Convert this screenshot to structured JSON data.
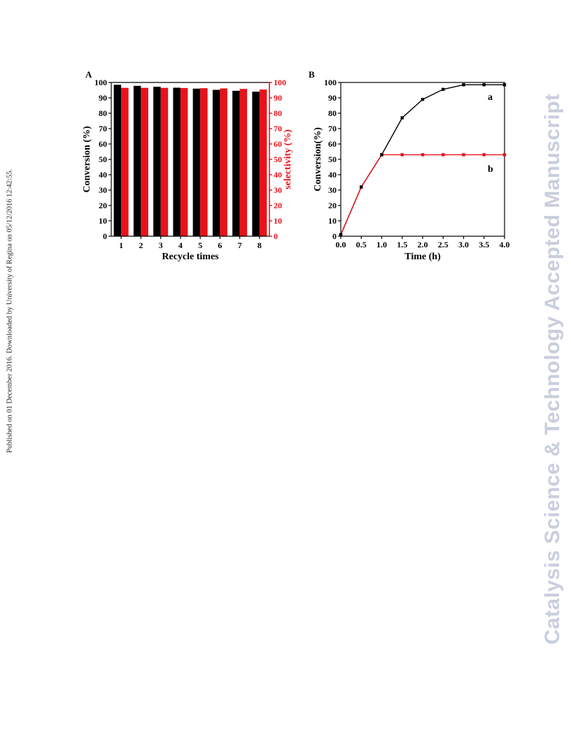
{
  "page": {
    "side_note": "Published on 01 December 2016. Downloaded by University of Regina on 05/12/2016 12:42:55.",
    "watermark": "Catalysis Science & Technology Accepted Manuscript"
  },
  "colors": {
    "black": "#000000",
    "red": "#e8121a"
  },
  "chart_data": [
    {
      "type": "bar",
      "panel_label": "A",
      "categories": [
        "1",
        "2",
        "3",
        "4",
        "5",
        "6",
        "7",
        "8"
      ],
      "series": [
        {
          "values": [
            98.5,
            97.8,
            97.2,
            96.6,
            96.0,
            95.2,
            94.6,
            94.0
          ],
          "axis": "left",
          "color": "#000000"
        },
        {
          "values": [
            96.5,
            96.5,
            96.5,
            96.4,
            96.3,
            96.1,
            95.8,
            95.4
          ],
          "axis": "right",
          "color": "#e8121a"
        }
      ],
      "xlabel": "Recycle times",
      "ylabel": "Conversion (%)",
      "y2label": "selectivity (%)",
      "ylim": [
        0,
        100
      ],
      "y2lim": [
        0,
        100
      ],
      "yticks": [
        "0",
        "10",
        "20",
        "30",
        "40",
        "50",
        "60",
        "70",
        "80",
        "90",
        "100"
      ],
      "grid": false
    },
    {
      "type": "line",
      "panel_label": "B",
      "x": [
        0.0,
        0.5,
        1.0,
        1.5,
        2.0,
        2.5,
        3.0,
        3.5,
        4.0
      ],
      "xticks": [
        "0.0",
        "0.5",
        "1.0",
        "1.5",
        "2.0",
        "2.5",
        "3.0",
        "3.5",
        "4.0"
      ],
      "series": [
        {
          "name": "a",
          "values": [
            1,
            32,
            53,
            77,
            89,
            95.5,
            98.5,
            98.5,
            98.5
          ],
          "color": "#000000"
        },
        {
          "name": "b",
          "values": [
            1,
            32,
            53,
            53,
            53,
            53,
            53,
            53,
            53
          ],
          "color": "#e8121a"
        }
      ],
      "xlabel": "Time (h)",
      "ylabel": "Conversion(%)",
      "xlim": [
        0,
        4
      ],
      "ylim": [
        0,
        100
      ],
      "yticks": [
        "0",
        "10",
        "20",
        "30",
        "40",
        "50",
        "60",
        "70",
        "80",
        "90",
        "100"
      ],
      "grid": false
    }
  ]
}
